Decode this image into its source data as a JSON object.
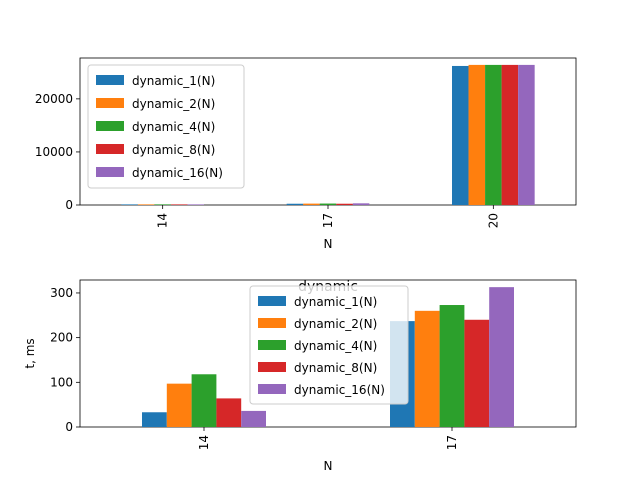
{
  "chart_data": [
    {
      "type": "bar",
      "title": "",
      "xlabel": "N",
      "ylabel": "",
      "categories": [
        "14",
        "17",
        "20"
      ],
      "ylim": [
        0,
        27700
      ],
      "yticks": [
        0,
        10000,
        20000
      ],
      "legend": "top-left",
      "grid": false,
      "series": [
        {
          "name": "dynamic_1(N)",
          "color": "#1f77b4",
          "values": [
            33,
            237,
            26200
          ]
        },
        {
          "name": "dynamic_2(N)",
          "color": "#ff7f0e",
          "values": [
            97,
            260,
            26400
          ]
        },
        {
          "name": "dynamic_4(N)",
          "color": "#2ca02c",
          "values": [
            118,
            273,
            26400
          ]
        },
        {
          "name": "dynamic_8(N)",
          "color": "#d62728",
          "values": [
            64,
            240,
            26400
          ]
        },
        {
          "name": "dynamic_16(N)",
          "color": "#9467bd",
          "values": [
            36,
            313,
            26400
          ]
        }
      ]
    },
    {
      "type": "bar",
      "title": "dynamic",
      "xlabel": "N",
      "ylabel": "t, ms",
      "categories": [
        "14",
        "17"
      ],
      "ylim": [
        0,
        329
      ],
      "yticks": [
        0,
        100,
        200,
        300
      ],
      "legend": "top-center",
      "grid": false,
      "series": [
        {
          "name": "dynamic_1(N)",
          "color": "#1f77b4",
          "values": [
            33,
            237
          ]
        },
        {
          "name": "dynamic_2(N)",
          "color": "#ff7f0e",
          "values": [
            97,
            260
          ]
        },
        {
          "name": "dynamic_4(N)",
          "color": "#2ca02c",
          "values": [
            118,
            273
          ]
        },
        {
          "name": "dynamic_8(N)",
          "color": "#d62728",
          "values": [
            64,
            240
          ]
        },
        {
          "name": "dynamic_16(N)",
          "color": "#9467bd",
          "values": [
            36,
            313
          ]
        }
      ]
    }
  ]
}
